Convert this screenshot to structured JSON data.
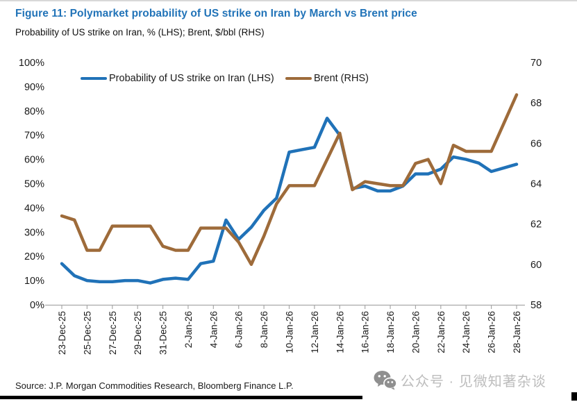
{
  "header": {
    "figure_title": "Figure 11: Polymarket probability of US strike on Iran by March vs Brent price",
    "subtitle": "Probability of US strike on Iran, % (LHS); Brent, $/bbl (RHS)"
  },
  "footer": {
    "source": "Source: J.P. Morgan Commodities Research, Bloomberg Finance L.P.",
    "watermark": "公众号 · 见微知著杂谈"
  },
  "colors": {
    "title_blue": "#2173b8",
    "axis_text": "#1a1a1a",
    "axis_line": "#a8a8a8",
    "watermark_gray": "#bdbdbd"
  },
  "chart_data": {
    "type": "line",
    "title": "Polymarket probability of US strike on Iran by March vs Brent price",
    "subtitle": "Probability of US strike on Iran, % (LHS); Brent, $/bbl (RHS)",
    "grid": false,
    "legend_position": "top",
    "x": [
      "23-Dec-25",
      "24-Dec-25",
      "25-Dec-25",
      "26-Dec-25",
      "27-Dec-25",
      "28-Dec-25",
      "29-Dec-25",
      "30-Dec-25",
      "31-Dec-25",
      "1-Jan-26",
      "2-Jan-26",
      "3-Jan-26",
      "4-Jan-26",
      "5-Jan-26",
      "6-Jan-26",
      "7-Jan-26",
      "8-Jan-26",
      "9-Jan-26",
      "10-Jan-26",
      "11-Jan-26",
      "12-Jan-26",
      "13-Jan-26",
      "14-Jan-26",
      "15-Jan-26",
      "16-Jan-26",
      "17-Jan-26",
      "18-Jan-26",
      "19-Jan-26",
      "20-Jan-26",
      "21-Jan-26",
      "22-Jan-26",
      "23-Jan-26",
      "24-Jan-26",
      "25-Jan-26",
      "26-Jan-26",
      "27-Jan-26",
      "28-Jan-26"
    ],
    "x_tick_labels": [
      "23-Dec-25",
      "25-Dec-25",
      "27-Dec-25",
      "29-Dec-25",
      "31-Dec-25",
      "2-Jan-26",
      "4-Jan-26",
      "6-Jan-26",
      "8-Jan-26",
      "10-Jan-26",
      "12-Jan-26",
      "14-Jan-26",
      "16-Jan-26",
      "18-Jan-26",
      "20-Jan-26",
      "22-Jan-26",
      "24-Jan-26",
      "26-Jan-26",
      "28-Jan-26"
    ],
    "left_axis": {
      "min": 0,
      "max": 100,
      "step": 10,
      "format": "percent",
      "tick_labels": [
        "0%",
        "10%",
        "20%",
        "30%",
        "40%",
        "50%",
        "60%",
        "70%",
        "80%",
        "90%",
        "100%"
      ]
    },
    "right_axis": {
      "min": 58,
      "max": 70,
      "step": 2,
      "tick_labels": [
        "58",
        "60",
        "62",
        "64",
        "66",
        "68",
        "70"
      ]
    },
    "series": [
      {
        "name": "Probability of US strike on Iran (LHS)",
        "axis": "left",
        "unit": "%",
        "color": "#2072b8",
        "values": [
          17,
          12,
          10,
          9.5,
          9.5,
          10,
          10,
          9,
          10.5,
          11,
          10.5,
          17,
          18,
          35,
          27,
          32,
          39,
          44,
          63,
          64,
          65,
          77,
          70,
          48,
          49,
          47,
          47,
          49,
          54,
          54,
          56,
          61,
          60,
          58.5,
          55,
          56.5,
          58
        ]
      },
      {
        "name": "Brent (RHS)",
        "axis": "right",
        "unit": "$/bbl",
        "color": "#9e6b3a",
        "values": [
          62.4,
          62.2,
          60.7,
          60.7,
          61.9,
          61.9,
          61.9,
          61.9,
          60.9,
          60.7,
          60.7,
          61.8,
          61.8,
          61.8,
          61.1,
          60.0,
          61.4,
          63.0,
          63.9,
          63.9,
          63.9,
          65.2,
          66.5,
          63.7,
          64.1,
          64.0,
          63.9,
          63.9,
          65.0,
          65.2,
          64.0,
          65.9,
          65.6,
          65.6,
          65.6,
          67.0,
          68.4
        ]
      }
    ]
  }
}
